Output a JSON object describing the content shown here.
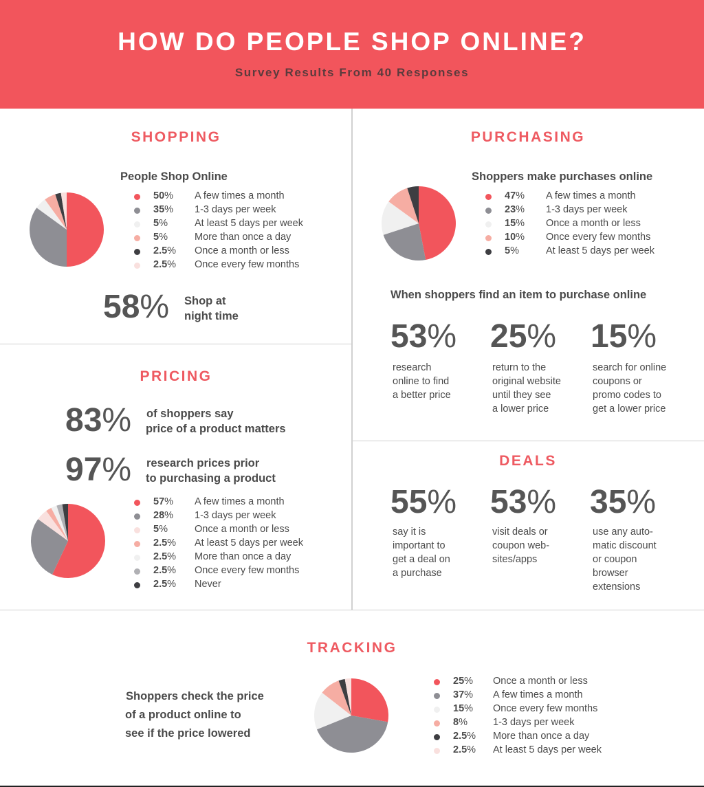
{
  "header": {
    "title": "HOW DO PEOPLE SHOP ONLINE?",
    "subtitle": "Survey Results From 40 Responses"
  },
  "shopping": {
    "section_title": "SHOPPING",
    "heading": "People Shop Online",
    "night_stat": {
      "value": "58%",
      "text_line1": "Shop at",
      "text_line2": "night time"
    }
  },
  "purchasing": {
    "section_title": "PURCHASING",
    "heading": "Shoppers make purchases online",
    "find_heading": "When shoppers find an item to purchase online",
    "stats": [
      {
        "value": "53%",
        "lines": [
          "research",
          "online to find",
          "a better price"
        ]
      },
      {
        "value": "25%",
        "lines": [
          "return to the",
          "original website",
          "until they see",
          "a lower price"
        ]
      },
      {
        "value": "15%",
        "lines": [
          "search for online",
          "coupons or",
          "promo codes to",
          "get a lower price"
        ]
      }
    ]
  },
  "pricing": {
    "section_title": "PRICING",
    "stat1": {
      "value": "83%",
      "line1": "of shoppers say",
      "line2": "price of a product matters"
    },
    "stat2": {
      "value": "97%",
      "line1": "research prices prior",
      "line2": "to purchasing a product"
    }
  },
  "deals": {
    "section_title": "DEALS",
    "stats": [
      {
        "value": "55%",
        "lines": [
          "say it is",
          "important to",
          "get a deal on",
          "a purchase"
        ]
      },
      {
        "value": "53%",
        "lines": [
          "visit deals or",
          "coupon web-",
          "sites/apps"
        ]
      },
      {
        "value": "35%",
        "lines": [
          "use any auto-",
          "matic discount",
          "or coupon",
          "browser",
          "extensions"
        ]
      }
    ]
  },
  "tracking": {
    "section_title": "TRACKING",
    "line1": "Shoppers check the price",
    "line2": "of a product online to",
    "line3": "see if the price lowered"
  },
  "chart_data": [
    {
      "type": "pie",
      "id": "shopping",
      "slices": [
        {
          "pct_label": "50%",
          "value": 50,
          "label": "A few times a month",
          "color": "#f2555c"
        },
        {
          "pct_label": "35%",
          "value": 35,
          "label": "1-3 days per week",
          "color": "#8e8e94"
        },
        {
          "pct_label": "5%",
          "value": 5,
          "label": "At least 5 days per week",
          "color": "#f0f0f0"
        },
        {
          "pct_label": "5%",
          "value": 5,
          "label": "More than once a day",
          "color": "#f6ada3"
        },
        {
          "pct_label": "2.5%",
          "value": 2.5,
          "label": "Once a month or less",
          "color": "#3e3e42"
        },
        {
          "pct_label": "2.5%",
          "value": 2.5,
          "label": "Once every few months",
          "color": "#f9e0de"
        }
      ]
    },
    {
      "type": "pie",
      "id": "purchasing",
      "slices": [
        {
          "pct_label": "47%",
          "value": 47,
          "label": "A few times a month",
          "color": "#f2555c"
        },
        {
          "pct_label": "23%",
          "value": 23,
          "label": "1-3 days per week",
          "color": "#8e8e94"
        },
        {
          "pct_label": "15%",
          "value": 15,
          "label": "Once a month or less",
          "color": "#f0f0f0"
        },
        {
          "pct_label": "10%",
          "value": 10,
          "label": "Once every few months",
          "color": "#f6ada3"
        },
        {
          "pct_label": "5%",
          "value": 5,
          "label": "At least 5 days per week",
          "color": "#3e3e42"
        }
      ]
    },
    {
      "type": "pie",
      "id": "pricing",
      "slices": [
        {
          "pct_label": "57%",
          "value": 57,
          "label": "A few times a month",
          "color": "#f2555c"
        },
        {
          "pct_label": "28%",
          "value": 28,
          "label": "1-3 days per week",
          "color": "#8e8e94"
        },
        {
          "pct_label": "5%",
          "value": 5,
          "label": "Once a month or less",
          "color": "#f9e0de"
        },
        {
          "pct_label": "2.5%",
          "value": 2.5,
          "label": "At least 5 days per week",
          "color": "#f6ada3"
        },
        {
          "pct_label": "2.5%",
          "value": 2.5,
          "label": "More than once a day",
          "color": "#f0f0f0"
        },
        {
          "pct_label": "2.5%",
          "value": 2.5,
          "label": "Once every few months",
          "color": "#b0b0b4"
        },
        {
          "pct_label": "2.5%",
          "value": 2.5,
          "label": "Never",
          "color": "#3e3e42"
        }
      ]
    },
    {
      "type": "pie",
      "id": "tracking",
      "slices": [
        {
          "pct_label": "25%",
          "value": 25,
          "label": "Once a month or less",
          "color": "#f2555c"
        },
        {
          "pct_label": "37%",
          "value": 37,
          "label": "A few times a month",
          "color": "#8e8e94"
        },
        {
          "pct_label": "15%",
          "value": 15,
          "label": "Once every few months",
          "color": "#f0f0f0"
        },
        {
          "pct_label": "8%",
          "value": 8,
          "label": "1-3 days per week",
          "color": "#f6ada3"
        },
        {
          "pct_label": "2.5%",
          "value": 2.5,
          "label": "More than once a day",
          "color": "#3e3e42"
        },
        {
          "pct_label": "2.5%",
          "value": 2.5,
          "label": "At least 5 days per week",
          "color": "#f9e0de"
        }
      ]
    }
  ]
}
